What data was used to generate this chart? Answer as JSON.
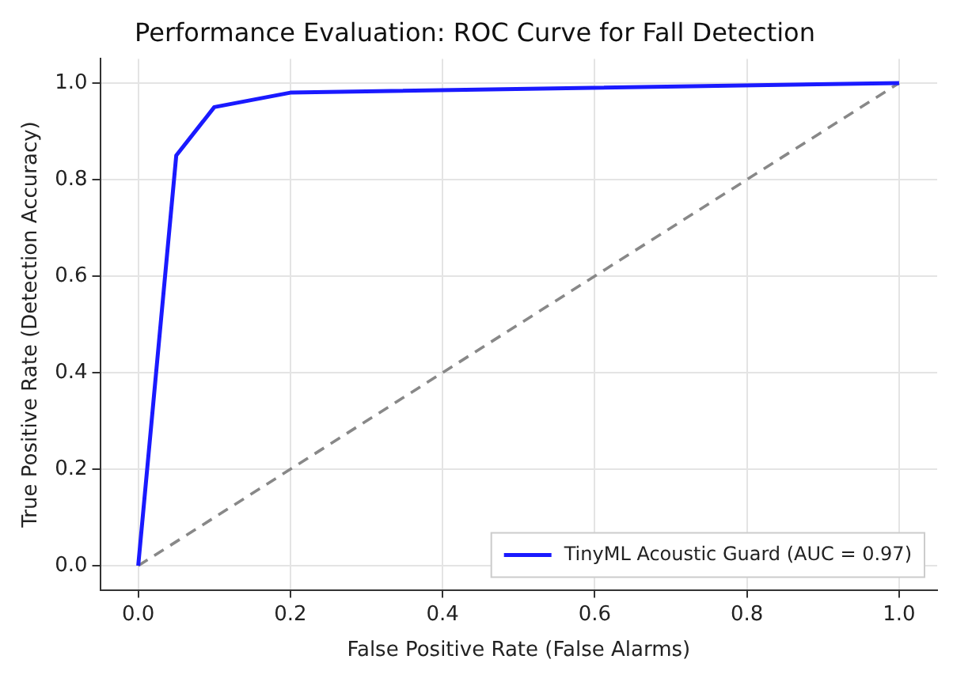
{
  "chart_data": {
    "type": "line",
    "title": "Performance Evaluation: ROC Curve for Fall Detection",
    "xlabel": "False Positive Rate (False Alarms)",
    "ylabel": "True Positive Rate (Detection Accuracy)",
    "xlim": [
      -0.05,
      1.05
    ],
    "ylim": [
      -0.05,
      1.05
    ],
    "xticks": [
      {
        "value": 0,
        "label": "0.0"
      },
      {
        "value": 0.2,
        "label": "0.2"
      },
      {
        "value": 0.4,
        "label": "0.4"
      },
      {
        "value": 0.6,
        "label": "0.6"
      },
      {
        "value": 0.8,
        "label": "0.8"
      },
      {
        "value": 1,
        "label": "1.0"
      }
    ],
    "yticks": [
      {
        "value": 0,
        "label": "0.0"
      },
      {
        "value": 0.2,
        "label": "0.2"
      },
      {
        "value": 0.4,
        "label": "0.4"
      },
      {
        "value": 0.6,
        "label": "0.6"
      },
      {
        "value": 0.8,
        "label": "0.8"
      },
      {
        "value": 1,
        "label": "1.0"
      }
    ],
    "series": [
      {
        "name": "TinyML Acoustic Guard (AUC = 0.97)",
        "color": "#1a1aff",
        "x": [
          0,
          0.05,
          0.1,
          0.2,
          1
        ],
        "values": [
          0,
          0.85,
          0.95,
          0.98,
          1
        ],
        "line_style": "solid"
      },
      {
        "color": "#888888",
        "x": [
          0,
          1
        ],
        "values": [
          0,
          1
        ],
        "line_style": "dashed"
      }
    ],
    "grid": true,
    "legend": "bottom right",
    "marker": "none"
  }
}
